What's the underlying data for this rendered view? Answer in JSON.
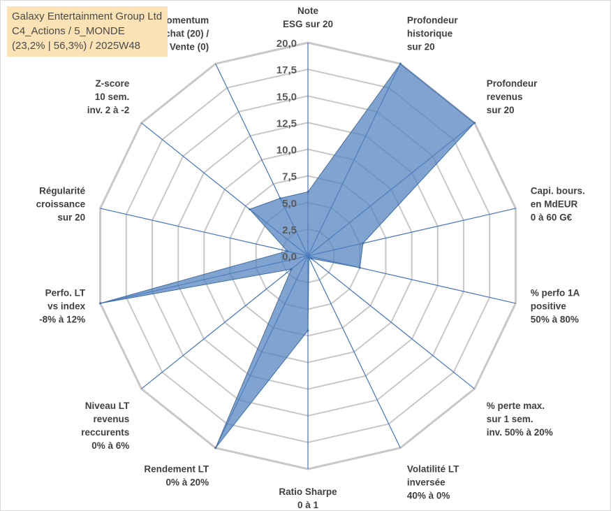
{
  "title": {
    "line1": "Galaxy Entertainment Group Ltd",
    "line2": "C4_Actions / 5_MONDE",
    "line3": "(23,2% | 56,3%) / 2025W48"
  },
  "chart_data": {
    "type": "radar",
    "axes": [
      [
        "Note",
        "ESG sur 20"
      ],
      [
        "Profondeur",
        "historique",
        "sur 20"
      ],
      [
        "Profondeur",
        "revenus",
        "sur 20"
      ],
      [
        "Capi. bours.",
        "en MdEUR",
        "0 à 60 G€"
      ],
      [
        "% perfo 1A",
        "positive",
        "50% à 80%"
      ],
      [
        "% perte max.",
        "sur 1 sem.",
        "inv. 50% à 20%"
      ],
      [
        "Volatilité LT",
        "inversée",
        "40% à 0%"
      ],
      [
        "Ratio Sharpe",
        "0 à 1"
      ],
      [
        "Rendement LT",
        "0% à 20%"
      ],
      [
        "Niveau LT",
        "revenus",
        "reccurents",
        "0% à 6%"
      ],
      [
        "Perfo. LT",
        "vs index",
        "-8% à 12%"
      ],
      [
        "Régularité",
        "croissance",
        "sur 20"
      ],
      [
        "Z-score",
        "10 sem.",
        "inv. 2 à -2"
      ],
      [
        "Momentum",
        "Achat (20) /",
        "Vente (0)"
      ]
    ],
    "values": [
      6.0,
      20.0,
      20.0,
      5.3,
      5.0,
      0.4,
      0.2,
      7.0,
      20.0,
      2.0,
      20.0,
      2.0,
      7.0,
      6.0
    ],
    "rmin": 0,
    "rmax": 20,
    "ticks": [
      "0,0",
      "2,5",
      "5,0",
      "7,5",
      "10,0",
      "12,5",
      "15,0",
      "17,5",
      "20,0"
    ],
    "tick_values": [
      0,
      2.5,
      5,
      7.5,
      10,
      12.5,
      15,
      17.5,
      20
    ],
    "series_color": "#4f81bd",
    "grid_color": "#c8c8c8",
    "spoke_color": "#4472c4"
  }
}
